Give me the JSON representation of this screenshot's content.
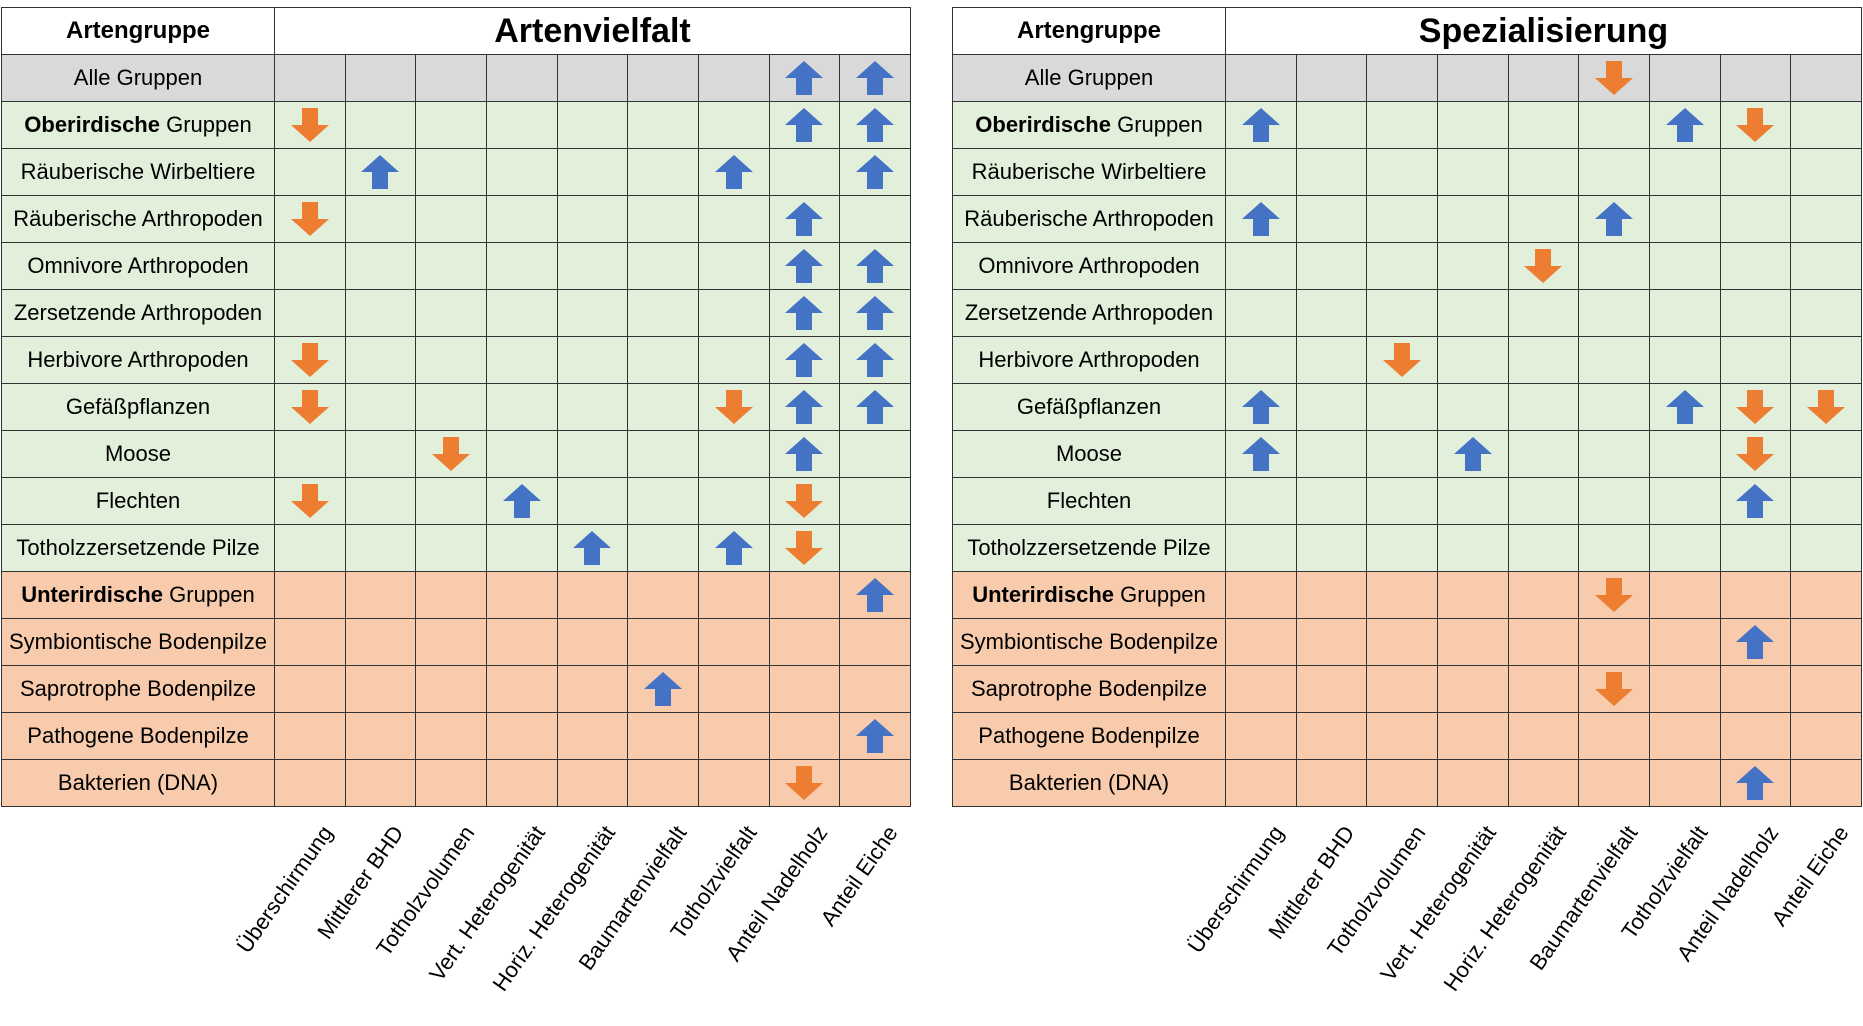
{
  "chart_data": [
    {
      "type": "table",
      "title": "Artenvielfalt",
      "row_header": "Artengruppe",
      "columns": [
        "Überschirmung",
        "Mittlerer BHD",
        "Totholzvolumen",
        "Vert. Heterogenität",
        "Horiz. Heterogenität",
        "Baumartenvielfalt",
        "Totholzvielfalt",
        "Anteil Nadelholz",
        "Anteil Eiche"
      ],
      "rows": [
        {
          "label": "Alle Gruppen",
          "bold_prefix": "",
          "category": "all",
          "values": [
            "",
            "",
            "",
            "",
            "",
            "",
            "",
            "up",
            "up"
          ]
        },
        {
          "label": " Gruppen",
          "bold_prefix": "Oberirdische",
          "category": "above",
          "values": [
            "down",
            "",
            "",
            "",
            "",
            "",
            "",
            "up",
            "up"
          ]
        },
        {
          "label": "Räuberische Wirbeltiere",
          "bold_prefix": "",
          "category": "above",
          "values": [
            "",
            "up",
            "",
            "",
            "",
            "",
            "up",
            "",
            "up"
          ]
        },
        {
          "label": "Räuberische Arthropoden",
          "bold_prefix": "",
          "category": "above",
          "values": [
            "down",
            "",
            "",
            "",
            "",
            "",
            "",
            "up",
            ""
          ]
        },
        {
          "label": "Omnivore Arthropoden",
          "bold_prefix": "",
          "category": "above",
          "values": [
            "",
            "",
            "",
            "",
            "",
            "",
            "",
            "up",
            "up"
          ]
        },
        {
          "label": "Zersetzende Arthropoden",
          "bold_prefix": "",
          "category": "above",
          "values": [
            "",
            "",
            "",
            "",
            "",
            "",
            "",
            "up",
            "up"
          ]
        },
        {
          "label": "Herbivore Arthropoden",
          "bold_prefix": "",
          "category": "above",
          "values": [
            "down",
            "",
            "",
            "",
            "",
            "",
            "",
            "up",
            "up"
          ]
        },
        {
          "label": "Gefäßpflanzen",
          "bold_prefix": "",
          "category": "above",
          "values": [
            "down",
            "",
            "",
            "",
            "",
            "",
            "down",
            "up",
            "up"
          ]
        },
        {
          "label": "Moose",
          "bold_prefix": "",
          "category": "above",
          "values": [
            "",
            "",
            "down",
            "",
            "",
            "",
            "",
            "up",
            ""
          ]
        },
        {
          "label": "Flechten",
          "bold_prefix": "",
          "category": "above",
          "values": [
            "down",
            "",
            "",
            "up",
            "",
            "",
            "",
            "down",
            ""
          ]
        },
        {
          "label": "Totholzzersetzende Pilze",
          "bold_prefix": "",
          "category": "above",
          "values": [
            "",
            "",
            "",
            "",
            "up",
            "",
            "up",
            "down",
            ""
          ]
        },
        {
          "label": " Gruppen",
          "bold_prefix": "Unterirdische",
          "category": "below",
          "values": [
            "",
            "",
            "",
            "",
            "",
            "",
            "",
            "",
            "up"
          ]
        },
        {
          "label": "Symbiontische Bodenpilze",
          "bold_prefix": "",
          "category": "below",
          "values": [
            "",
            "",
            "",
            "",
            "",
            "",
            "",
            "",
            ""
          ]
        },
        {
          "label": "Saprotrophe Bodenpilze",
          "bold_prefix": "",
          "category": "below",
          "values": [
            "",
            "",
            "",
            "",
            "",
            "up",
            "",
            "",
            ""
          ]
        },
        {
          "label": "Pathogene Bodenpilze",
          "bold_prefix": "",
          "category": "below",
          "values": [
            "",
            "",
            "",
            "",
            "",
            "",
            "",
            "",
            "up"
          ]
        },
        {
          "label": "Bakterien (DNA)",
          "bold_prefix": "",
          "category": "below",
          "values": [
            "",
            "",
            "",
            "",
            "",
            "",
            "",
            "down",
            ""
          ]
        }
      ]
    },
    {
      "type": "table",
      "title": "Spezialisierung",
      "row_header": "Artengruppe",
      "columns": [
        "Überschirmung",
        "Mittlerer BHD",
        "Totholzvolumen",
        "Vert. Heterogenität",
        "Horiz. Heterogenität",
        "Baumartenvielfalt",
        "Totholzvielfalt",
        "Anteil Nadelholz",
        "Anteil Eiche"
      ],
      "rows": [
        {
          "label": "Alle Gruppen",
          "bold_prefix": "",
          "category": "all",
          "values": [
            "",
            "",
            "",
            "",
            "",
            "down",
            "",
            "",
            ""
          ]
        },
        {
          "label": " Gruppen",
          "bold_prefix": "Oberirdische",
          "category": "above",
          "values": [
            "up",
            "",
            "",
            "",
            "",
            "",
            "up",
            "down",
            ""
          ]
        },
        {
          "label": "Räuberische Wirbeltiere",
          "bold_prefix": "",
          "category": "above",
          "values": [
            "",
            "",
            "",
            "",
            "",
            "",
            "",
            "",
            ""
          ]
        },
        {
          "label": "Räuberische Arthropoden",
          "bold_prefix": "",
          "category": "above",
          "values": [
            "up",
            "",
            "",
            "",
            "",
            "up",
            "",
            "",
            ""
          ]
        },
        {
          "label": "Omnivore Arthropoden",
          "bold_prefix": "",
          "category": "above",
          "values": [
            "",
            "",
            "",
            "",
            "down",
            "",
            "",
            "",
            ""
          ]
        },
        {
          "label": "Zersetzende Arthropoden",
          "bold_prefix": "",
          "category": "above",
          "values": [
            "",
            "",
            "",
            "",
            "",
            "",
            "",
            "",
            ""
          ]
        },
        {
          "label": "Herbivore Arthropoden",
          "bold_prefix": "",
          "category": "above",
          "values": [
            "",
            "",
            "down",
            "",
            "",
            "",
            "",
            "",
            ""
          ]
        },
        {
          "label": "Gefäßpflanzen",
          "bold_prefix": "",
          "category": "above",
          "values": [
            "up",
            "",
            "",
            "",
            "",
            "",
            "up",
            "down",
            "down"
          ]
        },
        {
          "label": "Moose",
          "bold_prefix": "",
          "category": "above",
          "values": [
            "up",
            "",
            "",
            "up",
            "",
            "",
            "",
            "down",
            ""
          ]
        },
        {
          "label": "Flechten",
          "bold_prefix": "",
          "category": "above",
          "values": [
            "",
            "",
            "",
            "",
            "",
            "",
            "",
            "up",
            ""
          ]
        },
        {
          "label": "Totholzzersetzende Pilze",
          "bold_prefix": "",
          "category": "above",
          "values": [
            "",
            "",
            "",
            "",
            "",
            "",
            "",
            "",
            ""
          ]
        },
        {
          "label": " Gruppen",
          "bold_prefix": "Unterirdische",
          "category": "below",
          "values": [
            "",
            "",
            "",
            "",
            "",
            "down",
            "",
            "",
            ""
          ]
        },
        {
          "label": "Symbiontische Bodenpilze",
          "bold_prefix": "",
          "category": "below",
          "values": [
            "",
            "",
            "",
            "",
            "",
            "",
            "",
            "up",
            ""
          ]
        },
        {
          "label": "Saprotrophe Bodenpilze",
          "bold_prefix": "",
          "category": "below",
          "values": [
            "",
            "",
            "",
            "",
            "",
            "down",
            "",
            "",
            ""
          ]
        },
        {
          "label": "Pathogene Bodenpilze",
          "bold_prefix": "",
          "category": "below",
          "values": [
            "",
            "",
            "",
            "",
            "",
            "",
            "",
            "",
            ""
          ]
        },
        {
          "label": "Bakterien (DNA)",
          "bold_prefix": "",
          "category": "below",
          "values": [
            "",
            "",
            "",
            "",
            "",
            "",
            "",
            "up",
            ""
          ]
        }
      ]
    }
  ],
  "colors": {
    "up_arrow": "#4472c4",
    "down_arrow": "#ed7d31",
    "row_all": "#d9d9d9",
    "row_above": "#e2efda",
    "row_below": "#f8cbad"
  },
  "icons": {
    "up": "arrow-up-icon",
    "down": "arrow-down-icon"
  }
}
